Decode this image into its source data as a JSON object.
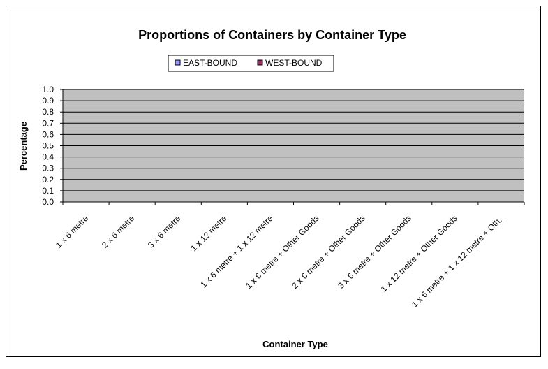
{
  "chart_data": {
    "type": "bar",
    "title": "Proportions of Containers by Container Type",
    "xlabel": "Container Type",
    "ylabel": "Percentage",
    "ylim": [
      0,
      1.0
    ],
    "yticks": [
      "0.0",
      "0.1",
      "0.2",
      "0.3",
      "0.4",
      "0.5",
      "0.6",
      "0.7",
      "0.8",
      "0.9",
      "1.0"
    ],
    "grid": true,
    "legend_position": "top",
    "plot_background": "#c0c0c0",
    "categories": [
      "1 x 6 metre",
      "2 x 6 metre",
      "3 x 6 metre",
      "1 x 12 metre",
      "1 x 6 metre + 1 x 12 metre",
      "1 x 6 metre + Other Goods",
      "2 x 6 metre + Other Goods",
      "3 x 6 metre + Other Goods",
      "1 x 12 metre + Other Goods",
      "1 x 6 metre + 1 x 12 metre + Oth.."
    ],
    "series": [
      {
        "name": "EAST-BOUND",
        "color": "#9999ff",
        "values": [
          0,
          0,
          0,
          0,
          0,
          0,
          0,
          0,
          0,
          0
        ]
      },
      {
        "name": "WEST-BOUND",
        "color": "#993366",
        "values": [
          0,
          0,
          0,
          0,
          0,
          0,
          0,
          0,
          0,
          0
        ]
      }
    ]
  }
}
